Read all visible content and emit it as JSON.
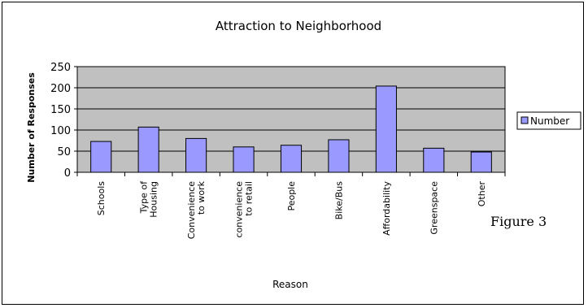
{
  "chart_data": {
    "type": "bar",
    "title": "Attraction to Neighborhood",
    "xlabel": "Reason",
    "ylabel": "Number of Responses",
    "categories": [
      "Schools",
      "Type of Housing",
      "Convenience to work",
      "convenience to retail",
      "People",
      "Bike/Bus",
      "Affordability",
      "Greenspace",
      "Other"
    ],
    "category_lines": [
      [
        "Schools"
      ],
      [
        "Type of",
        "Housing"
      ],
      [
        "Convenience",
        "to work"
      ],
      [
        "convenience",
        "to retail"
      ],
      [
        "People"
      ],
      [
        "Bike/Bus"
      ],
      [
        "Affordability"
      ],
      [
        "Greenspace"
      ],
      [
        "Other"
      ]
    ],
    "series": [
      {
        "name": "Number",
        "values": [
          73,
          107,
          80,
          60,
          64,
          77,
          204,
          57,
          48
        ]
      }
    ],
    "ylim": [
      0,
      250
    ],
    "yticks": [
      0,
      50,
      100,
      150,
      200,
      250
    ],
    "grid": true,
    "legend_position": "right",
    "colors": {
      "bar": "#9999ff",
      "plot_bg": "#c0c0c0",
      "border": "#000000"
    }
  },
  "annotation": "Figure 3"
}
